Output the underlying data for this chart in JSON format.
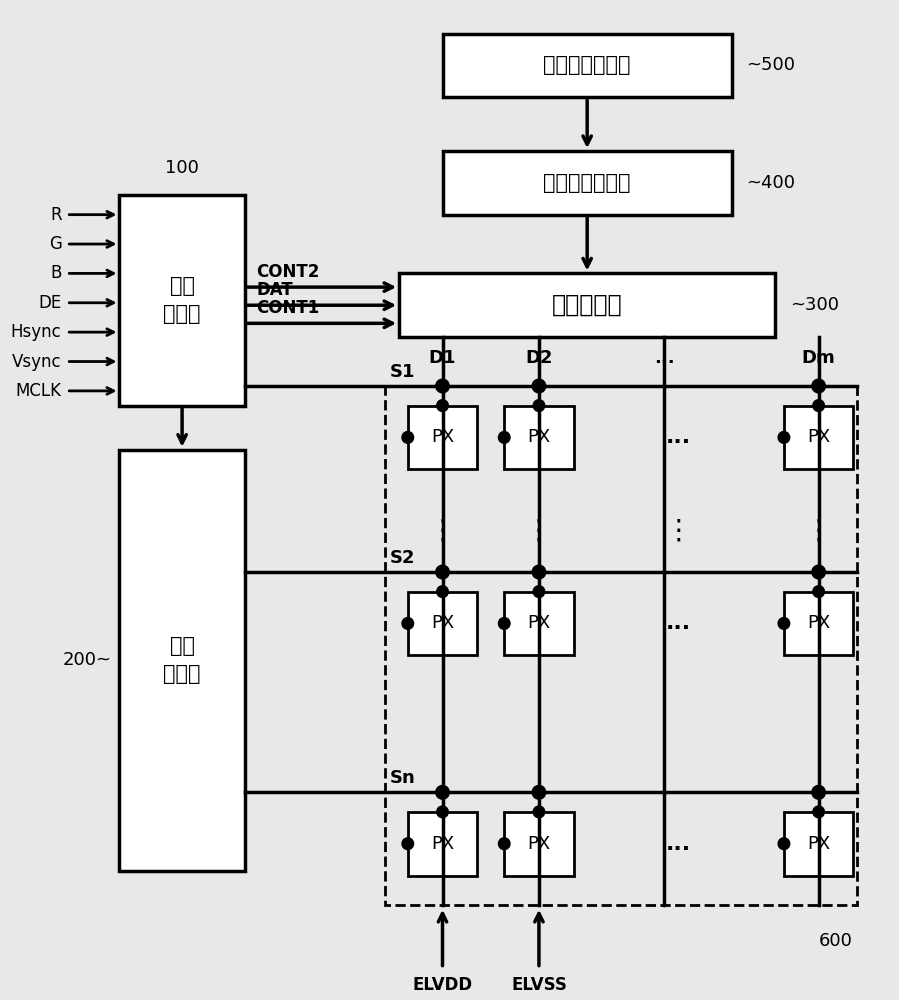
{
  "bg_color": "#e8e8e8",
  "line_color": "#000000",
  "box_color": "#ffffff",
  "text_color": "#000000",
  "ref_label": "参考电压发生器",
  "ref_ref": "~500",
  "gamma_label": "伽玛电压发生器",
  "gamma_ref": "~400",
  "data_driver_label": "数据驱动器",
  "data_driver_ref": "~300",
  "signal_label": "信号\n控制器",
  "signal_ref": "100",
  "scan_label": "扫描\n驱动器",
  "scan_ref": "200",
  "panel_ref": "600",
  "inputs": [
    "R",
    "G",
    "B",
    "DE",
    "Hsync",
    "Vsync",
    "MCLK"
  ],
  "sig_labels": [
    "CONT2",
    "DAT",
    "CONT1"
  ],
  "scan_line_labels": [
    "S1",
    "S2",
    "Sn"
  ],
  "d_labels": [
    "D1",
    "D2",
    "...",
    "Dm"
  ],
  "elvdd": "ELVDD",
  "elvss": "ELVSS",
  "px_label": "PX"
}
